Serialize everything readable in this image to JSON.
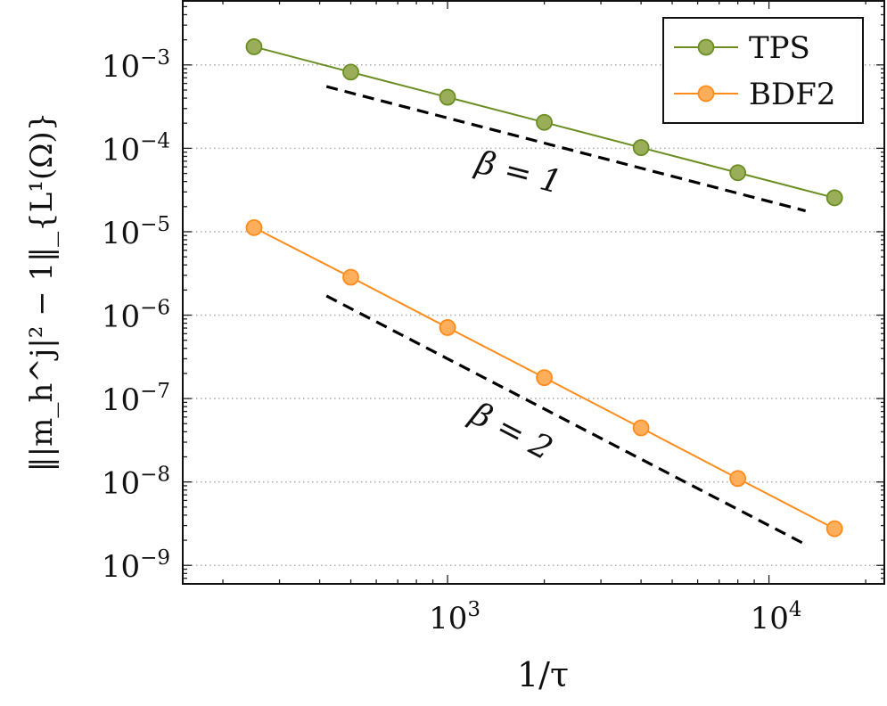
{
  "chart_data": {
    "type": "line",
    "scale": {
      "x": "log",
      "y": "log"
    },
    "xlim": [
      150,
      23000
    ],
    "ylim": [
      6e-10,
      0.006
    ],
    "grid": {
      "y_major": true,
      "x_major": false
    },
    "legend": {
      "position": "top-right",
      "entries": [
        "TPS",
        "BDF2"
      ]
    },
    "xlabel": "1/τ",
    "ylabel": "‖|m_h^j|² − 1‖_{L¹(Ω)}",
    "x_ticks": [
      {
        "value": 1000,
        "base": "10",
        "exp": "3"
      },
      {
        "value": 10000,
        "base": "10",
        "exp": "4"
      }
    ],
    "y_ticks": [
      {
        "value": 1e-09,
        "base": "10",
        "exp": "−9"
      },
      {
        "value": 1e-08,
        "base": "10",
        "exp": "−8"
      },
      {
        "value": 1e-07,
        "base": "10",
        "exp": "−7"
      },
      {
        "value": 1e-06,
        "base": "10",
        "exp": "−6"
      },
      {
        "value": 1e-05,
        "base": "10",
        "exp": "−5"
      },
      {
        "value": 0.0001,
        "base": "10",
        "exp": "−4"
      },
      {
        "value": 0.001,
        "base": "10",
        "exp": "−3"
      }
    ],
    "series": [
      {
        "name": "TPS",
        "color": "#6b8e23",
        "marker_fill": "#9aae5a",
        "x": [
          250,
          500,
          1000,
          2000,
          4000,
          8000,
          16000
        ],
        "y": [
          0.00165,
          0.00082,
          0.00041,
          0.000205,
          0.000102,
          5.1e-05,
          2.55e-05
        ]
      },
      {
        "name": "BDF2",
        "color": "#ff8c1a",
        "marker_fill": "#ffae5c",
        "x": [
          250,
          500,
          1000,
          2000,
          4000,
          8000,
          16000
        ],
        "y": [
          1.12e-05,
          2.85e-06,
          7.1e-07,
          1.78e-07,
          4.45e-08,
          1.1e-08,
          2.75e-09
        ]
      }
    ],
    "reference_lines": [
      {
        "label": "β = 1",
        "x": [
          420,
          13000
        ],
        "y": [
          0.00055,
          1.78e-05
        ],
        "style": "dashed",
        "color": "#000000"
      },
      {
        "label": "β = 2",
        "x": [
          420,
          13000
        ],
        "y": [
          1.7e-06,
          1.78e-09
        ],
        "style": "dashed",
        "color": "#000000"
      }
    ]
  }
}
